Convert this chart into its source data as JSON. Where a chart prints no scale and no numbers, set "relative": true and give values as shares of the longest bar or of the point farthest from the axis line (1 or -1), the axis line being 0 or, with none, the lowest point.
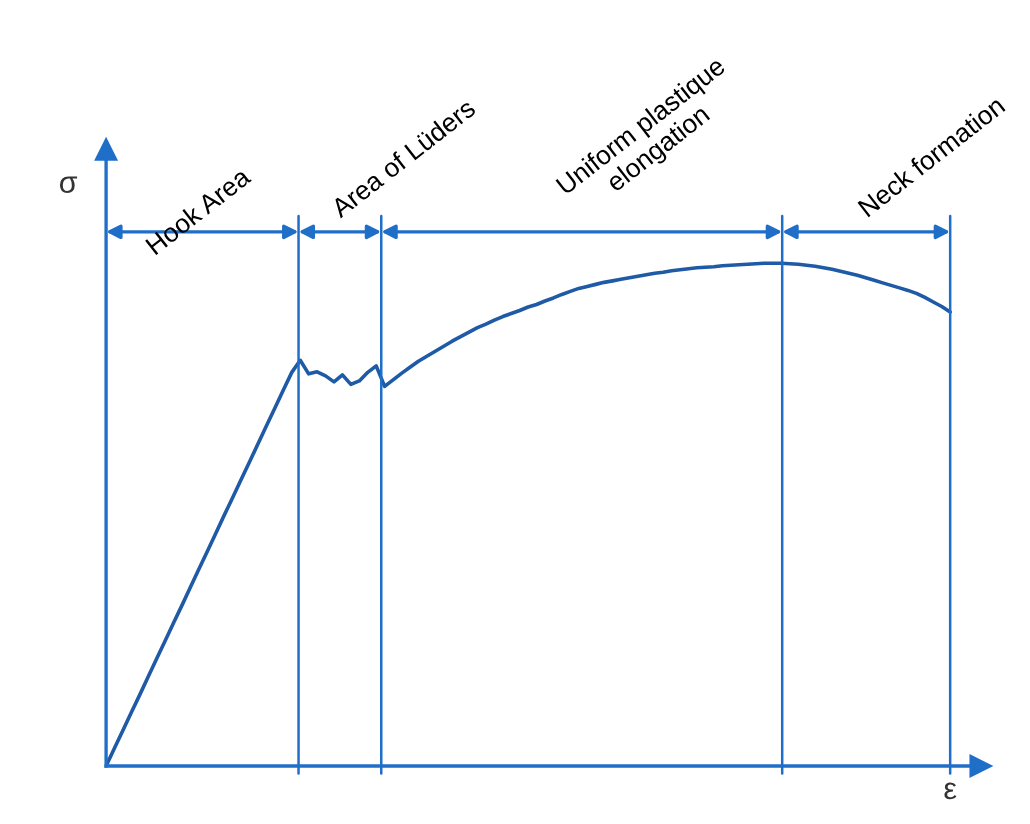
{
  "chart_data": {
    "type": "line",
    "relative": true,
    "xlabel": "ε",
    "ylabel": "σ",
    "marker": "none",
    "line_style": "solid",
    "categories": [
      null,
      null,
      null,
      null,
      null,
      null,
      null,
      null,
      null,
      null,
      null,
      null,
      null,
      null,
      null,
      null,
      null,
      null,
      null,
      null,
      null,
      null,
      null,
      null,
      null,
      null,
      null,
      null,
      null,
      null,
      null,
      null,
      null,
      null,
      null,
      null,
      null,
      null,
      null,
      null,
      null,
      null,
      null,
      null,
      null,
      null,
      null,
      null,
      null,
      null,
      null,
      null,
      null,
      null,
      null,
      null,
      null,
      null,
      null,
      null,
      null,
      null,
      null,
      null,
      null,
      null,
      null,
      null,
      null,
      null,
      null,
      null,
      null,
      null,
      null,
      null,
      null,
      null,
      null,
      null,
      null,
      null,
      null,
      null,
      null,
      null,
      null,
      null,
      null,
      null,
      null,
      null,
      null,
      null,
      null,
      null,
      null,
      null,
      null,
      null,
      null
    ],
    "series": [
      {
        "color": "#1f5aa6",
        "values": [
          0,
          0.036,
          0.071,
          0.107,
          0.142,
          0.178,
          0.214,
          0.249,
          0.285,
          0.32,
          0.356,
          0.392,
          0.427,
          0.463,
          0.499,
          0.534,
          0.57,
          0.605,
          0.641,
          0.677,
          0.712,
          0.748,
          0.783,
          0.807,
          0.78,
          0.784,
          0.776,
          0.764,
          0.778,
          0.759,
          0.766,
          0.783,
          0.796,
          0.755,
          0.768,
          0.781,
          0.793,
          0.805,
          0.815,
          0.825,
          0.835,
          0.845,
          0.854,
          0.863,
          0.872,
          0.879,
          0.887,
          0.894,
          0.9,
          0.906,
          0.913,
          0.918,
          0.925,
          0.931,
          0.938,
          0.944,
          0.95,
          0.954,
          0.958,
          0.962,
          0.965,
          0.968,
          0.971,
          0.974,
          0.977,
          0.98,
          0.982,
          0.985,
          0.987,
          0.989,
          0.991,
          0.992,
          0.993,
          0.995,
          0.996,
          0.997,
          0.998,
          0.999,
          1.0,
          1.0,
          1.0,
          0.999,
          0.998,
          0.996,
          0.994,
          0.991,
          0.988,
          0.984,
          0.98,
          0.976,
          0.971,
          0.966,
          0.961,
          0.956,
          0.951,
          0.946,
          0.94,
          0.932,
          0.923,
          0.914,
          0.903
        ]
      }
    ],
    "annotations": [
      "Hook Area",
      "Area of Lüders",
      "Uniform plastique\nelongation",
      "Neck formation"
    ]
  }
}
